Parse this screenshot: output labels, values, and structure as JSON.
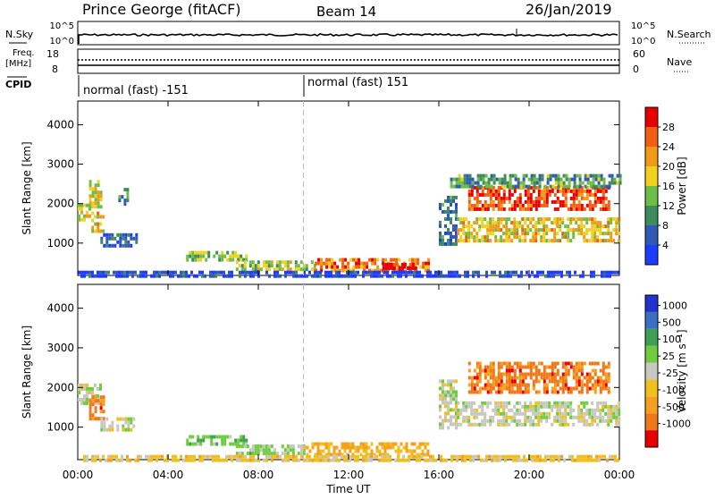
{
  "header": {
    "station": "Prince George (fitACF)",
    "beam": "Beam 14",
    "date": "26/Jan/2019"
  },
  "top_panels": {
    "nsky_label": "N.Sky",
    "nsky_ticks": [
      "10^5",
      "10^0"
    ],
    "nsearch_label": "N.Search",
    "nsearch_ticks": [
      "10^5",
      "10^0"
    ],
    "freq_label": "Freq.",
    "freq_unit": "[MHz]",
    "freq_ticks": [
      "18",
      "8"
    ],
    "nave_label": "Nave",
    "nave_ticks": [
      "60",
      "0"
    ],
    "cpid_label": "CPID",
    "cpid_segments": [
      {
        "label": "normal (fast) -151",
        "start_h": 0
      },
      {
        "label": "normal (fast) 151",
        "start_h": 10
      }
    ]
  },
  "chart_data": [
    {
      "type": "heatmap",
      "name": "power",
      "ylabel": "Slant Range [km]",
      "ylim": [
        180,
        4600
      ],
      "yticks": [
        "1000",
        "2000",
        "3000",
        "4000"
      ],
      "xlim": [
        0,
        24
      ],
      "colorbar_label": "Power [dB]",
      "colorbar_ticks": [
        "4",
        "8",
        "12",
        "16",
        "20",
        "24",
        "28"
      ],
      "colorscale": [
        "#1e3cff",
        "#2f59b5",
        "#3c8c5c",
        "#6cbe47",
        "#f0d020",
        "#f29a18",
        "#f06010",
        "#e80000"
      ],
      "regions": [
        {
          "t0": 0.0,
          "t1": 0.5,
          "r0": 1550,
          "r1": 2000,
          "level": 0.55
        },
        {
          "t0": 0.5,
          "t1": 1.0,
          "r0": 1900,
          "r1": 2600,
          "level": 0.55
        },
        {
          "t0": 0.6,
          "t1": 1.1,
          "r0": 1300,
          "r1": 1800,
          "level": 0.6
        },
        {
          "t0": 1.0,
          "t1": 2.6,
          "r0": 900,
          "r1": 1250,
          "level": 0.2
        },
        {
          "t0": 1.8,
          "t1": 2.2,
          "r0": 2000,
          "r1": 2400,
          "level": 0.3
        },
        {
          "t0": 4.8,
          "t1": 7.5,
          "r0": 550,
          "r1": 800,
          "level": 0.45
        },
        {
          "t0": 7.0,
          "t1": 10.5,
          "r0": 350,
          "r1": 560,
          "level": 0.5
        },
        {
          "t0": 10.5,
          "t1": 15.5,
          "r0": 280,
          "r1": 620,
          "level": 0.75
        },
        {
          "t0": 13.5,
          "t1": 15.0,
          "r0": 300,
          "r1": 500,
          "level": 0.95
        },
        {
          "t0": 16.0,
          "t1": 16.8,
          "r0": 1000,
          "r1": 2200,
          "level": 0.25
        },
        {
          "t0": 16.8,
          "t1": 24.0,
          "r0": 1100,
          "r1": 1650,
          "level": 0.6
        },
        {
          "t0": 17.3,
          "t1": 23.5,
          "r0": 1900,
          "r1": 2450,
          "level": 0.85
        },
        {
          "t0": 16.5,
          "t1": 24.0,
          "r0": 2450,
          "r1": 2750,
          "level": 0.35
        },
        {
          "t0": 0.0,
          "t1": 24.0,
          "r0": 180,
          "r1": 300,
          "level": 0.1
        }
      ]
    },
    {
      "type": "heatmap",
      "name": "velocity",
      "ylabel": "Slant Range [km]",
      "ylim": [
        180,
        4600
      ],
      "yticks": [
        "1000",
        "2000",
        "3000",
        "4000"
      ],
      "xlim": [
        0,
        24
      ],
      "colorbar_label": "Velocity [m s⁻¹]",
      "colorbar_ticks": [
        "1000",
        "500",
        "100",
        "25",
        "-25",
        "-100",
        "-500",
        "-1000"
      ],
      "colorscale": [
        "#2233cc",
        "#3a6fc4",
        "#3f9f53",
        "#6fcd3d",
        "#c8c8c0",
        "#f0c020",
        "#f5a020",
        "#f07818",
        "#e80000"
      ],
      "regions": [
        {
          "t0": 0.0,
          "t1": 1.0,
          "r0": 1600,
          "r1": 2100,
          "level": 0.5
        },
        {
          "t0": 0.5,
          "t1": 1.1,
          "r0": 1200,
          "r1": 1800,
          "level": 0.82
        },
        {
          "t0": 1.0,
          "t1": 2.5,
          "r0": 900,
          "r1": 1250,
          "level": 0.5
        },
        {
          "t0": 4.8,
          "t1": 7.5,
          "r0": 550,
          "r1": 800,
          "level": 0.38
        },
        {
          "t0": 7.0,
          "t1": 10.0,
          "r0": 350,
          "r1": 560,
          "level": 0.42
        },
        {
          "t0": 10.0,
          "t1": 15.5,
          "r0": 280,
          "r1": 620,
          "level": 0.68
        },
        {
          "t0": 16.0,
          "t1": 16.8,
          "r0": 1000,
          "r1": 2200,
          "level": 0.5
        },
        {
          "t0": 16.8,
          "t1": 24.0,
          "r0": 1100,
          "r1": 1650,
          "level": 0.5
        },
        {
          "t0": 17.3,
          "t1": 23.5,
          "r0": 1900,
          "r1": 2650,
          "level": 0.82
        },
        {
          "t0": 0.0,
          "t1": 24.0,
          "r0": 180,
          "r1": 300,
          "level": 0.6
        }
      ]
    }
  ],
  "x_axis": {
    "ticks": [
      "00:00",
      "04:00",
      "08:00",
      "12:00",
      "16:00",
      "20:00",
      "00:00"
    ],
    "label": "Time UT"
  }
}
